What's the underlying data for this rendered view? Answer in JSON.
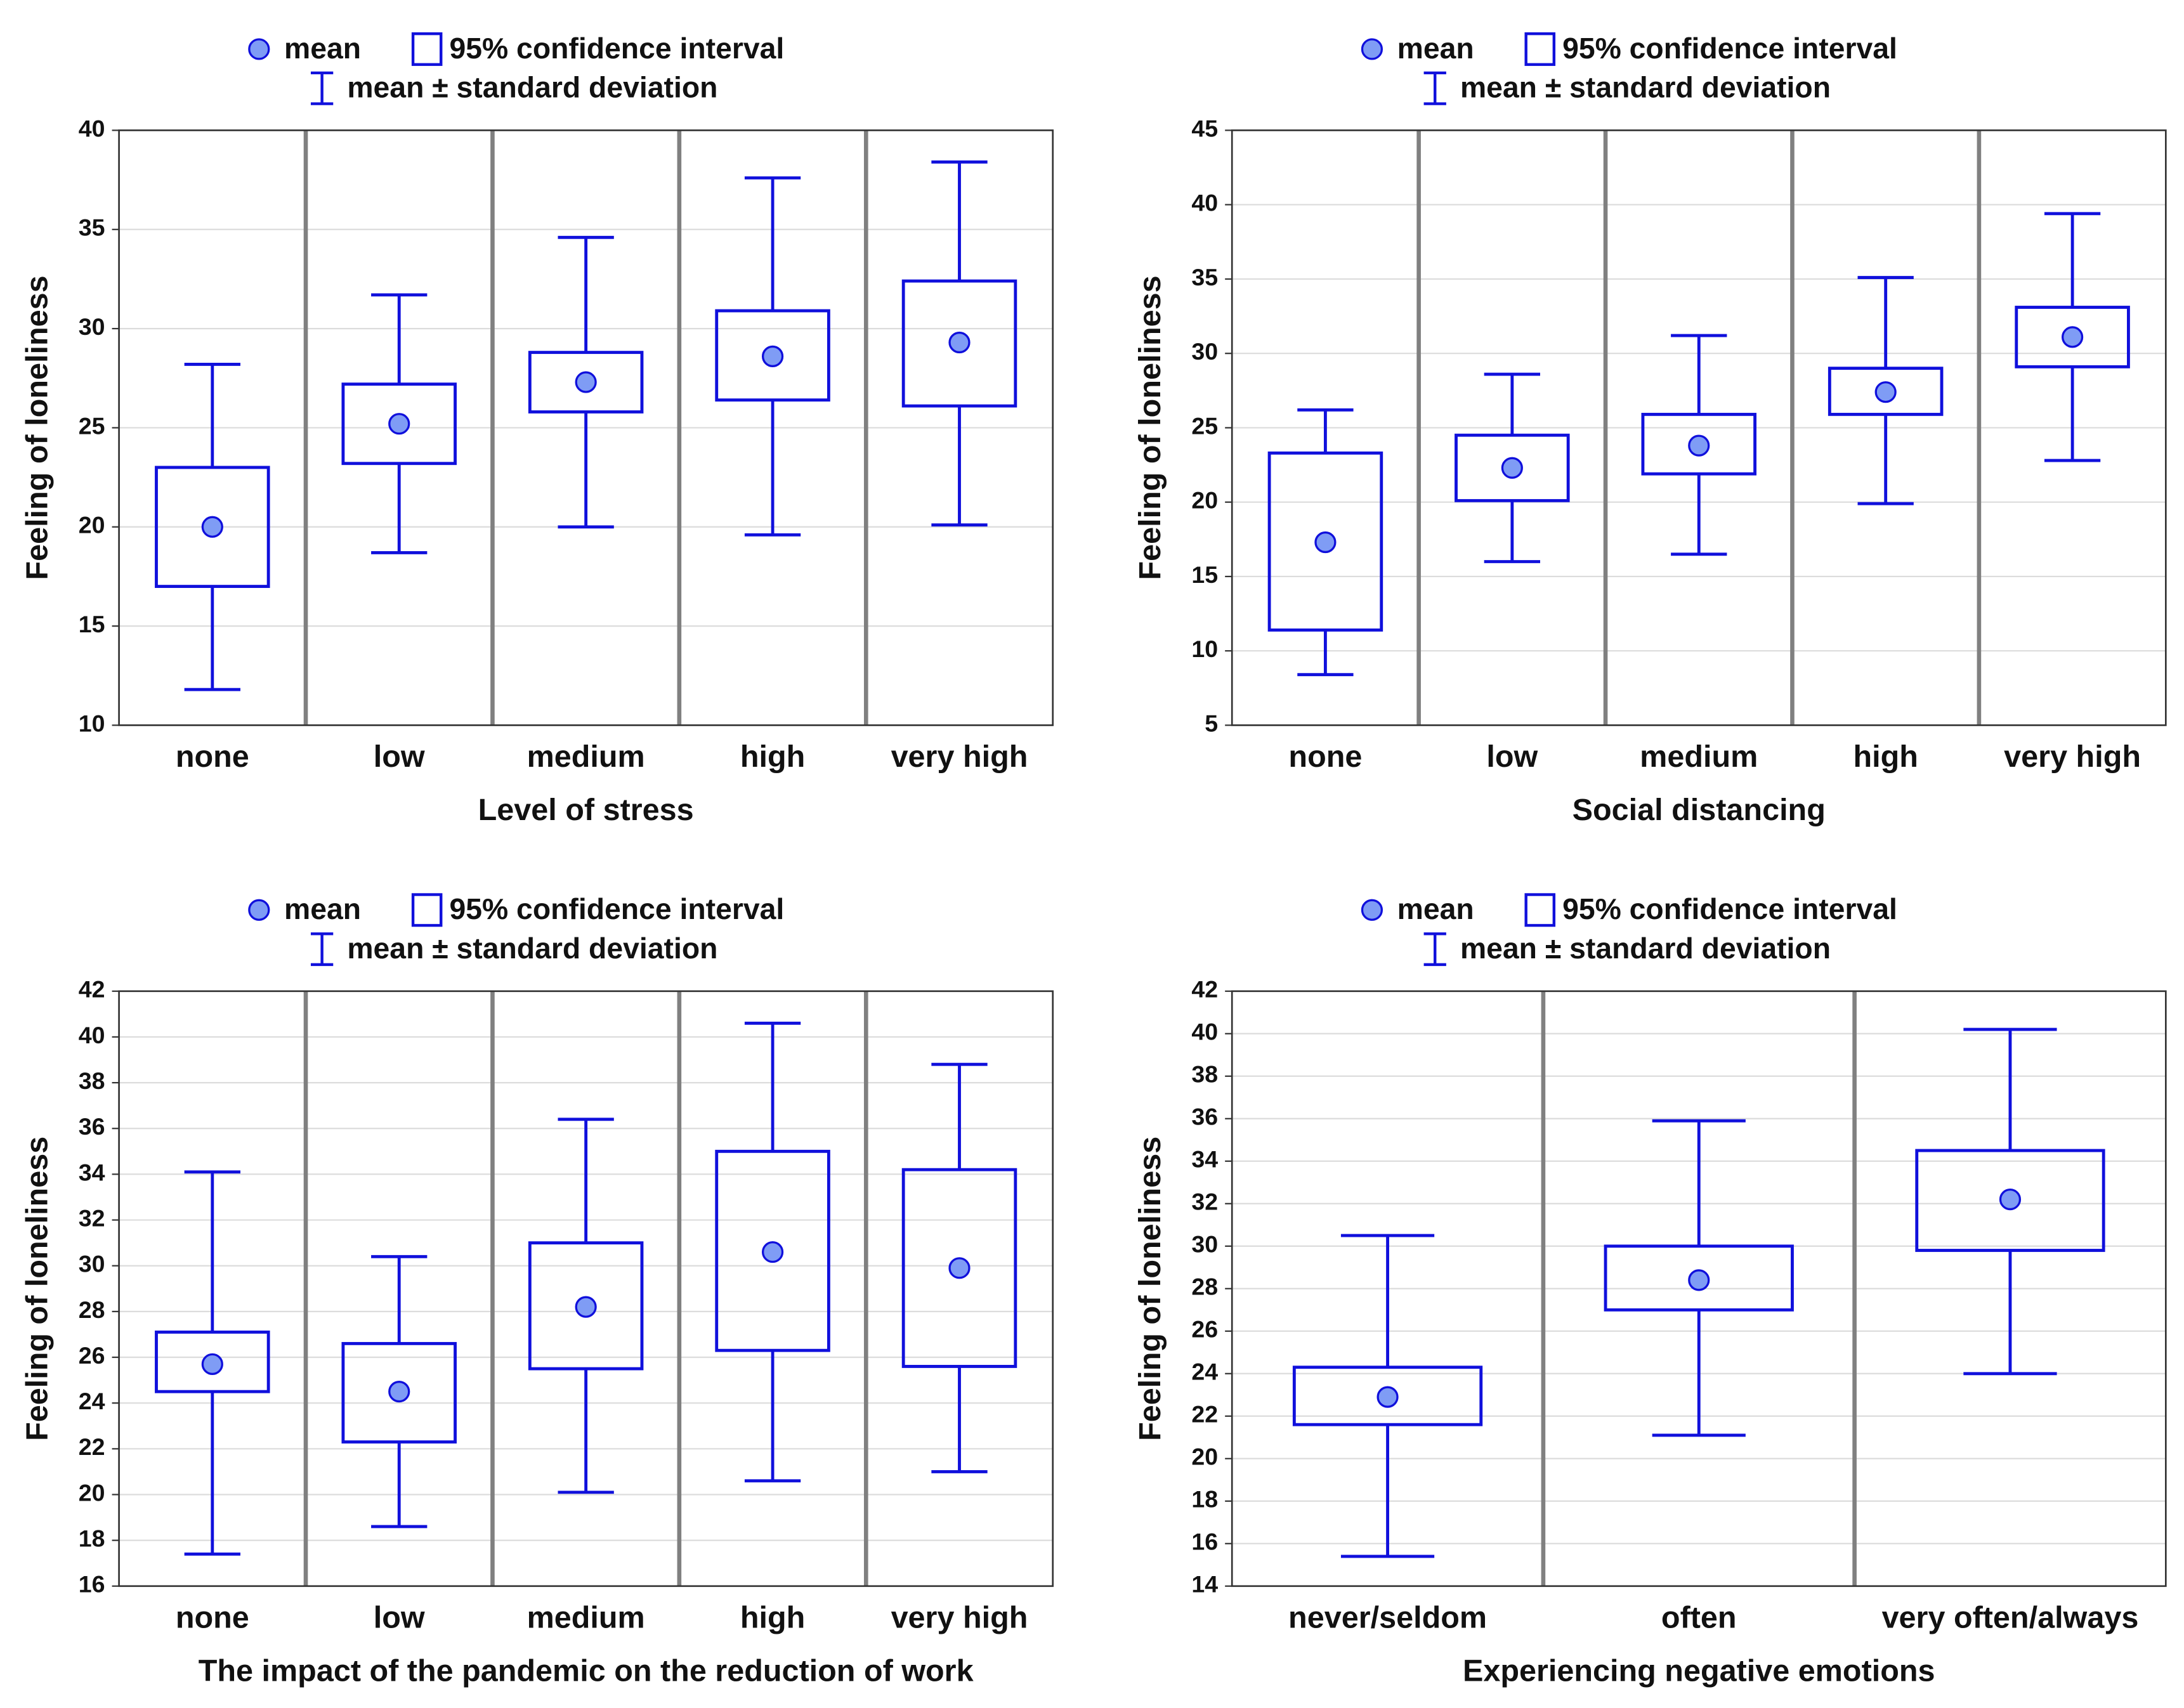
{
  "chart_data": [
    {
      "type": "box",
      "color": "#1010dc",
      "mean_fill": "#7f9cf5",
      "grid": true,
      "legend": {
        "mean": "mean",
        "ci": "95% confidence interval",
        "sd": "mean ± standard deviation"
      },
      "xlabel": "Level of stress",
      "ylabel": "Feeling of loneliness",
      "categories": [
        "none",
        "low",
        "medium",
        "high",
        "very high"
      ],
      "mean": [
        20,
        25.2,
        27.3,
        28.6,
        29.3
      ],
      "ci_low": [
        17,
        23.2,
        25.8,
        26.4,
        26.1
      ],
      "ci_high": [
        23,
        27.2,
        28.8,
        30.9,
        32.4
      ],
      "sd_low": [
        11.8,
        18.7,
        20,
        19.6,
        20.1
      ],
      "sd_high": [
        28.2,
        31.7,
        34.6,
        37.6,
        38.4
      ],
      "ylim": [
        10,
        40
      ],
      "yticks": [
        10,
        15,
        20,
        25,
        30,
        35,
        40
      ]
    },
    {
      "type": "box",
      "color": "#1010dc",
      "mean_fill": "#7f9cf5",
      "grid": true,
      "legend": {
        "mean": "mean",
        "ci": "95% confidence interval",
        "sd": "mean ± standard deviation"
      },
      "xlabel": "Social distancing",
      "ylabel": "Feeling of loneliness",
      "categories": [
        "none",
        "low",
        "medium",
        "high",
        "very high"
      ],
      "mean": [
        17.3,
        22.3,
        23.8,
        27.4,
        31.1
      ],
      "ci_low": [
        11.4,
        20.1,
        21.9,
        25.9,
        29.1
      ],
      "ci_high": [
        23.3,
        24.5,
        25.9,
        29,
        33.1
      ],
      "sd_low": [
        8.4,
        16,
        16.5,
        19.9,
        22.8
      ],
      "sd_high": [
        26.2,
        28.6,
        31.2,
        35.1,
        39.4
      ],
      "ylim": [
        5,
        45
      ],
      "yticks": [
        5,
        10,
        15,
        20,
        25,
        30,
        35,
        40,
        45
      ]
    },
    {
      "type": "box",
      "color": "#1010dc",
      "mean_fill": "#7f9cf5",
      "grid": true,
      "legend": {
        "mean": "mean",
        "ci": "95% confidence interval",
        "sd": "mean ± standard deviation"
      },
      "xlabel": "The impact of the pandemic on the reduction of work",
      "ylabel": "Feeling of loneliness",
      "categories": [
        "none",
        "low",
        "medium",
        "high",
        "very high"
      ],
      "mean": [
        25.7,
        24.5,
        28.2,
        30.6,
        29.9
      ],
      "ci_low": [
        24.5,
        22.3,
        25.5,
        26.3,
        25.6
      ],
      "ci_high": [
        27.1,
        26.6,
        31,
        35,
        34.2
      ],
      "sd_low": [
        17.4,
        18.6,
        20.1,
        20.6,
        21
      ],
      "sd_high": [
        34.1,
        30.4,
        36.4,
        40.6,
        38.8
      ],
      "ylim": [
        16,
        42
      ],
      "yticks": [
        16,
        18,
        20,
        22,
        24,
        26,
        28,
        30,
        32,
        34,
        36,
        38,
        40,
        42
      ]
    },
    {
      "type": "box",
      "color": "#1010dc",
      "mean_fill": "#7f9cf5",
      "grid": true,
      "legend": {
        "mean": "mean",
        "ci": "95% confidence interval",
        "sd": "mean ± standard deviation"
      },
      "xlabel": "Experiencing negative emotions",
      "ylabel": "Feeling of loneliness",
      "categories": [
        "never/seldom",
        "often",
        "very often/always"
      ],
      "mean": [
        22.9,
        28.4,
        32.2
      ],
      "ci_low": [
        21.6,
        27,
        29.8
      ],
      "ci_high": [
        24.3,
        30,
        34.5
      ],
      "sd_low": [
        15.4,
        21.1,
        24
      ],
      "sd_high": [
        30.5,
        35.9,
        40.2
      ],
      "ylim": [
        14,
        42
      ],
      "yticks": [
        14,
        16,
        18,
        20,
        22,
        24,
        26,
        28,
        30,
        32,
        34,
        36,
        38,
        40,
        42
      ]
    }
  ]
}
